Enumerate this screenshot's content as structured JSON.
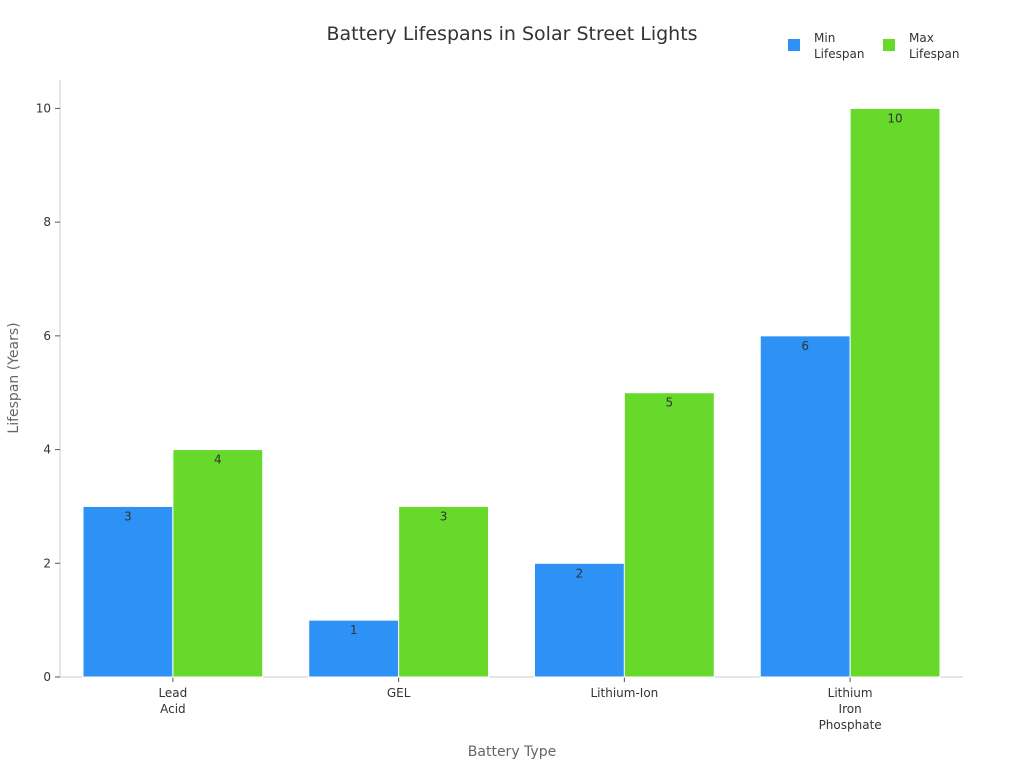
{
  "chart_data": {
    "type": "bar",
    "title": "Battery Lifespans in Solar Street Lights",
    "xlabel": "Battery Type",
    "ylabel": "Lifespan (Years)",
    "categories": [
      "Lead Acid",
      "GEL",
      "Lithium-Ion",
      "Lithium Iron Phosphate"
    ],
    "series": [
      {
        "name": "Min Lifespan",
        "values": [
          3,
          1,
          2,
          6
        ],
        "color": "#2E91F5"
      },
      {
        "name": "Max Lifespan",
        "values": [
          4,
          3,
          5,
          10
        ],
        "color": "#66D92B"
      }
    ],
    "ylim": [
      0,
      10.5
    ],
    "yticks": [
      0,
      2,
      4,
      6,
      8,
      10
    ],
    "grid": false,
    "legend_position": "top-right",
    "data_labels": true
  }
}
